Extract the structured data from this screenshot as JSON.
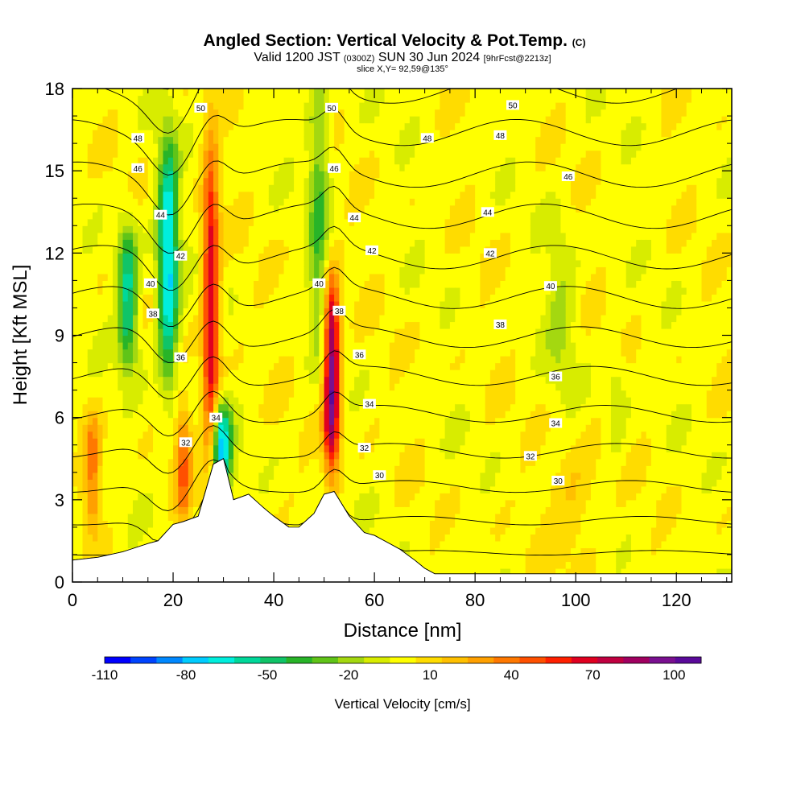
{
  "title": {
    "main": "Angled Section: Vertical Velocity & Pot.Temp.",
    "main_suffix": "(C)",
    "valid_prefix": "Valid 1200 JST",
    "valid_utc": "(0300Z)",
    "valid_date": "SUN 30 Jun 2024",
    "valid_fcst": "[9hrFcst@2213z]",
    "slice": "slice X,Y= 92,59@135°"
  },
  "colors": {
    "palette": [
      "#0000ff",
      "#0044ff",
      "#0088ff",
      "#00ccff",
      "#00eedd",
      "#00d89a",
      "#10c468",
      "#28b428",
      "#60c418",
      "#a4d810",
      "#d8ec00",
      "#ffff00",
      "#ffdc00",
      "#ffc000",
      "#ffa000",
      "#ff7800",
      "#ff5000",
      "#ff2000",
      "#e00020",
      "#c00040",
      "#a00060",
      "#7a1090",
      "#5a0a9a"
    ],
    "terrain": "#ffffff",
    "contour": "#000000"
  },
  "chart_data": {
    "type": "heatmap",
    "xlabel": "Distance [nm]",
    "ylabel": "Height [Kft MSL]",
    "xlim": [
      0,
      131
    ],
    "ylim": [
      0,
      18
    ],
    "xticks": [
      "0",
      "20",
      "40",
      "60",
      "80",
      "100",
      "120"
    ],
    "yticks": [
      "0",
      "3",
      "6",
      "9",
      "12",
      "15",
      "18"
    ],
    "colorbar": {
      "label": "Vertical Velocity [cm/s]",
      "min": -110,
      "max": 110,
      "step": 10,
      "tick_labels": [
        "-110",
        "-80",
        "-50",
        "-20",
        "10",
        "40",
        "70",
        "100"
      ]
    },
    "updrafts": [
      {
        "x": 27.5,
        "z_bottom": 4.5,
        "z_top": 15.5,
        "peak": 75
      },
      {
        "x": 51.5,
        "z_bottom": 4.5,
        "z_top": 10.5,
        "peak": 105
      },
      {
        "x": 4,
        "z_bottom": 2.5,
        "z_top": 5.5,
        "peak": 40
      },
      {
        "x": 22,
        "z_bottom": 2.5,
        "z_top": 6.0,
        "peak": 40
      }
    ],
    "downdrafts": [
      {
        "x": 19,
        "z_bottom": 8.0,
        "z_top": 15.5,
        "peak": -80
      },
      {
        "x": 11,
        "z_bottom": 8.5,
        "z_top": 12.5,
        "peak": -60
      },
      {
        "x": 29.5,
        "z_bottom": 3.8,
        "z_top": 6.0,
        "peak": -80
      },
      {
        "x": 49,
        "z_bottom": 9,
        "z_top": 18,
        "peak": -35
      }
    ],
    "terrain_profile": {
      "x": [
        0,
        5,
        10,
        15,
        17,
        20,
        22,
        25,
        28,
        30,
        32,
        35,
        38,
        40,
        43,
        45,
        48,
        50,
        52,
        55,
        58,
        60,
        63,
        65,
        68,
        70,
        72,
        131
      ],
      "z": [
        0.8,
        0.9,
        1.1,
        1.4,
        1.5,
        2.1,
        2.2,
        2.4,
        4.3,
        4.5,
        3.0,
        3.2,
        2.7,
        2.4,
        2.0,
        2.0,
        2.5,
        3.2,
        3.3,
        2.4,
        1.8,
        1.7,
        1.4,
        1.2,
        0.8,
        0.5,
        0.3,
        0.3
      ]
    },
    "potential_temperature": {
      "units": "C",
      "contour_levels": [
        29,
        30,
        31,
        32,
        33,
        34,
        35,
        36,
        37,
        38,
        39,
        40,
        41,
        42,
        43,
        44,
        45,
        46,
        47,
        48,
        49,
        50,
        51
      ],
      "labels": [
        {
          "text": "50",
          "x": 25.5,
          "z": 17.3
        },
        {
          "text": "50",
          "x": 51.5,
          "z": 17.3
        },
        {
          "text": "50",
          "x": 87.5,
          "z": 17.4
        },
        {
          "text": "48",
          "x": 13,
          "z": 16.2
        },
        {
          "text": "48",
          "x": 70.5,
          "z": 16.2
        },
        {
          "text": "48",
          "x": 85,
          "z": 16.3
        },
        {
          "text": "46",
          "x": 13,
          "z": 15.1
        },
        {
          "text": "46",
          "x": 52,
          "z": 15.1
        },
        {
          "text": "46",
          "x": 98.5,
          "z": 14.8
        },
        {
          "text": "44",
          "x": 17.5,
          "z": 13.4
        },
        {
          "text": "44",
          "x": 56,
          "z": 13.3
        },
        {
          "text": "44",
          "x": 82.5,
          "z": 13.5
        },
        {
          "text": "42",
          "x": 21.5,
          "z": 11.9
        },
        {
          "text": "42",
          "x": 59.5,
          "z": 12.1
        },
        {
          "text": "42",
          "x": 83,
          "z": 12.0
        },
        {
          "text": "40",
          "x": 15.5,
          "z": 10.9
        },
        {
          "text": "40",
          "x": 49,
          "z": 10.9
        },
        {
          "text": "40",
          "x": 95,
          "z": 10.8
        },
        {
          "text": "38",
          "x": 16,
          "z": 9.8
        },
        {
          "text": "38",
          "x": 53,
          "z": 9.9
        },
        {
          "text": "38",
          "x": 85,
          "z": 9.4
        },
        {
          "text": "36",
          "x": 21.5,
          "z": 8.2
        },
        {
          "text": "36",
          "x": 57,
          "z": 8.3
        },
        {
          "text": "36",
          "x": 96,
          "z": 7.5
        },
        {
          "text": "34",
          "x": 28.5,
          "z": 6.0
        },
        {
          "text": "34",
          "x": 59,
          "z": 6.5
        },
        {
          "text": "34",
          "x": 96,
          "z": 5.8
        },
        {
          "text": "32",
          "x": 22.5,
          "z": 5.1
        },
        {
          "text": "32",
          "x": 58,
          "z": 4.9
        },
        {
          "text": "32",
          "x": 91,
          "z": 4.6
        },
        {
          "text": "30",
          "x": 61,
          "z": 3.9
        },
        {
          "text": "30",
          "x": 96.5,
          "z": 3.7
        }
      ]
    }
  }
}
